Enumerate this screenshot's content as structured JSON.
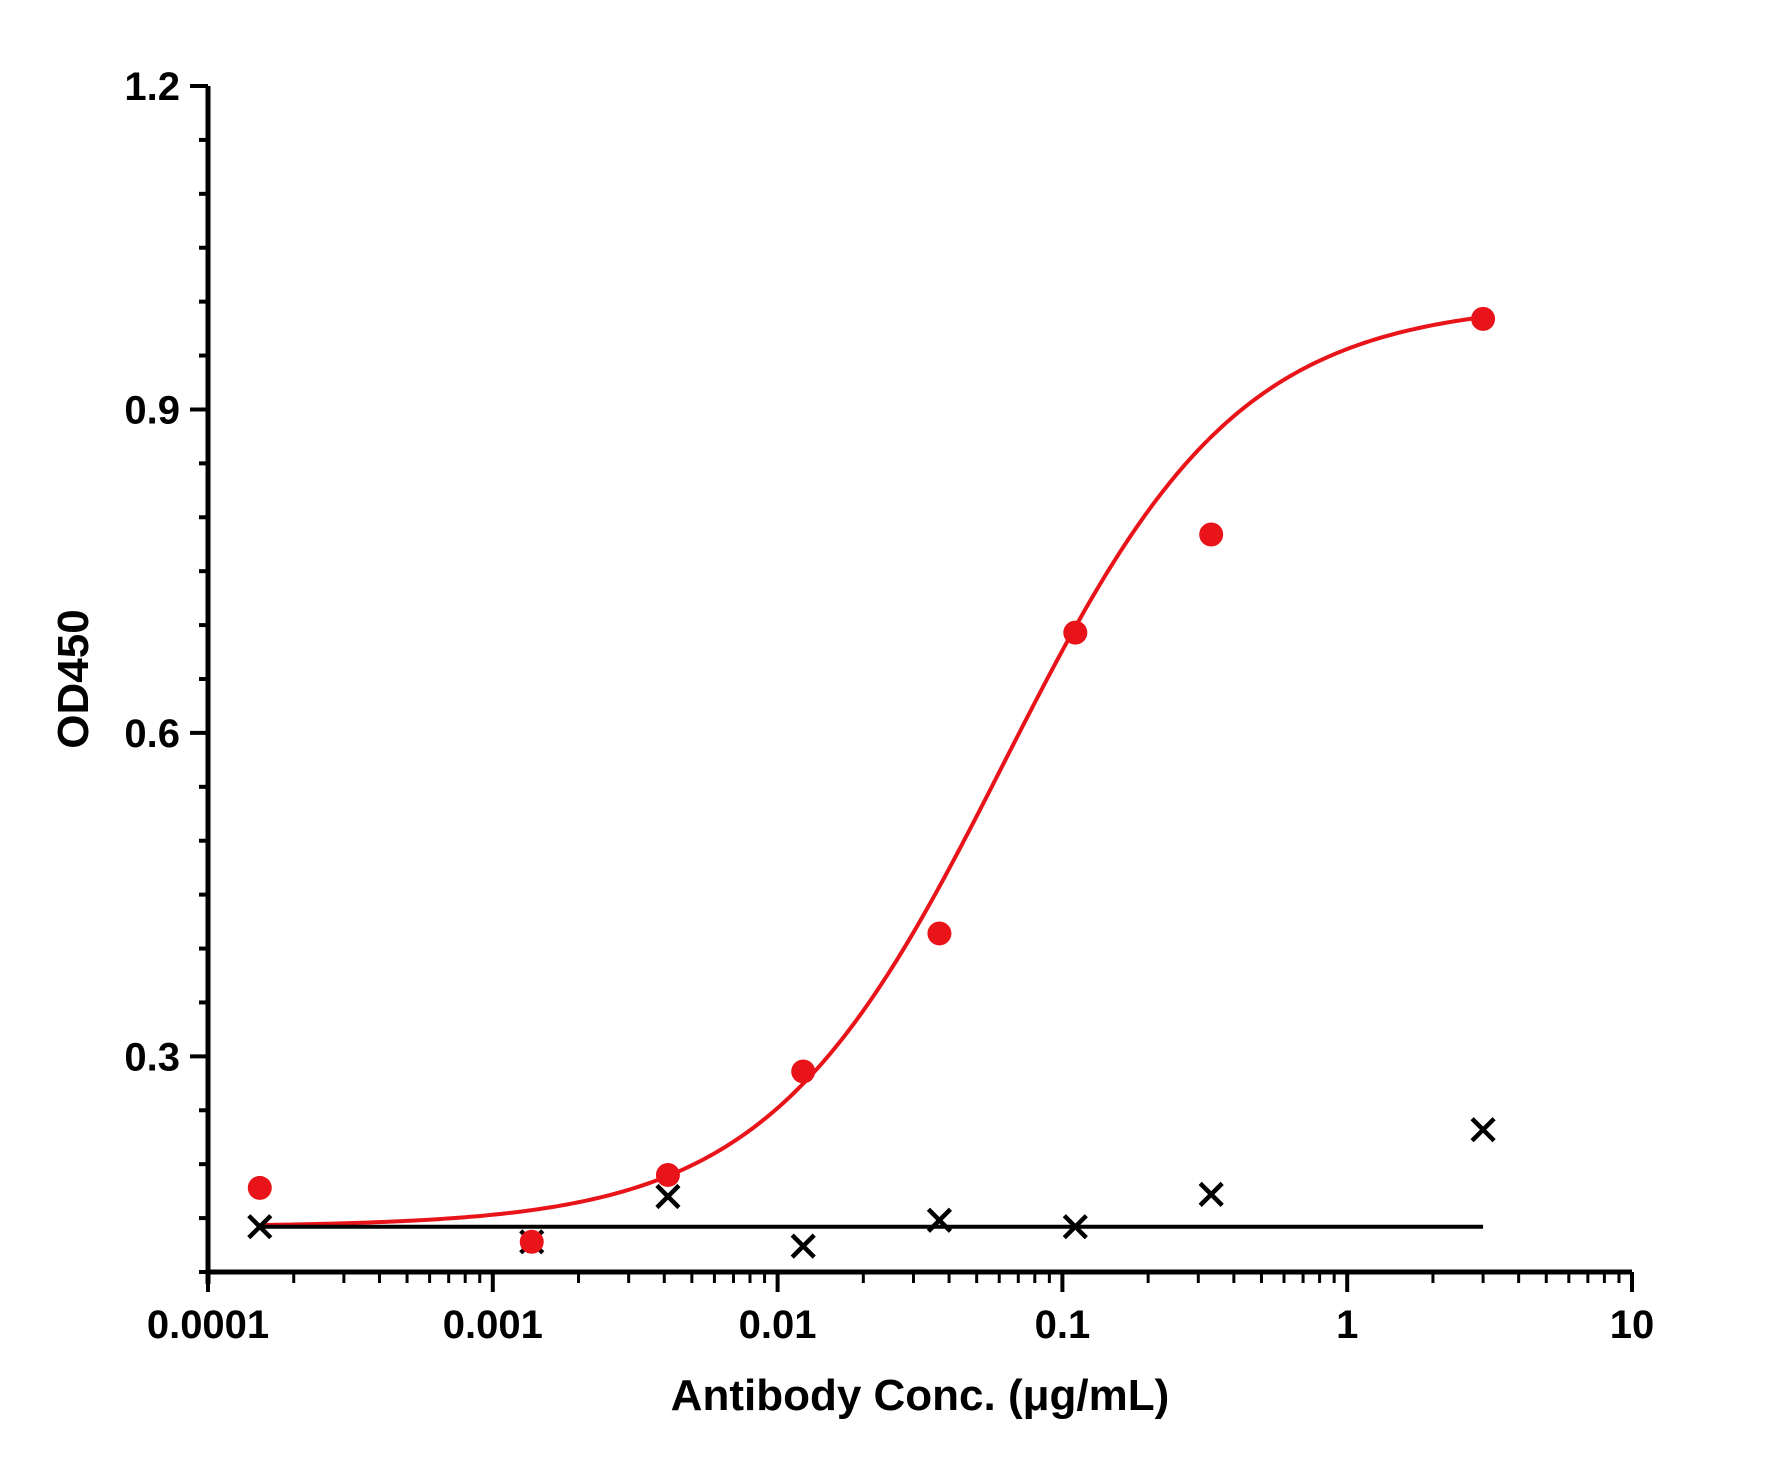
{
  "chart_data": {
    "type": "scatter",
    "title": "",
    "xlabel": "Antibody Conc. (μg/mL)",
    "ylabel": "OD450",
    "x_scale": "log",
    "xlim": [
      0.0001,
      10
    ],
    "ylim": [
      0.1,
      1.2
    ],
    "x_tick_labels": [
      "0.0001",
      "0.001",
      "0.01",
      "0.1",
      "1",
      "10"
    ],
    "y_ticks": [
      0.3,
      0.6,
      0.9,
      1.2
    ],
    "y_tick_labels": [
      "0.3",
      "0.6",
      "0.9",
      "1.2"
    ],
    "grid": false,
    "legend": "none",
    "series": [
      {
        "marker": "circle",
        "color": "#e8141a",
        "fit": "sigmoidal",
        "x": [
          0.000152,
          0.00137,
          0.00412,
          0.0123,
          0.037,
          0.111,
          0.333,
          3.0
        ],
        "y": [
          0.178,
          0.128,
          0.19,
          0.286,
          0.414,
          0.693,
          0.784,
          0.984
        ]
      },
      {
        "marker": "cross",
        "color": "#000000",
        "fit": "horizontal-line",
        "fit_y": 0.142,
        "x": [
          0.000152,
          0.00137,
          0.00412,
          0.0123,
          0.037,
          0.111,
          0.333,
          3.0
        ],
        "y": [
          0.142,
          0.128,
          0.17,
          0.124,
          0.148,
          0.142,
          0.172,
          0.232
        ]
      }
    ]
  }
}
